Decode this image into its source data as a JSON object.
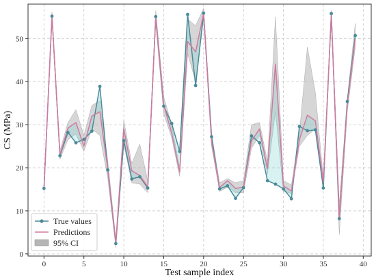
{
  "chart_data": {
    "type": "line",
    "xlabel": "Test sample index",
    "ylabel": "CS (MPa)",
    "xlim": [
      -2,
      41
    ],
    "ylim": [
      -0.5,
      58
    ],
    "xticks": [
      0,
      5,
      10,
      15,
      20,
      25,
      30,
      35,
      40
    ],
    "yticks": [
      0,
      10,
      20,
      30,
      40,
      50
    ],
    "grid": true,
    "legend_position": "bottom-left",
    "x": [
      0,
      1,
      2,
      3,
      4,
      5,
      6,
      7,
      8,
      9,
      10,
      11,
      12,
      13,
      14,
      15,
      16,
      17,
      18,
      19,
      20,
      21,
      22,
      23,
      24,
      25,
      26,
      27,
      28,
      29,
      30,
      31,
      32,
      33,
      34,
      35,
      36,
      37,
      38,
      39
    ],
    "series": [
      {
        "name": "True values",
        "color": "#4a8a9a",
        "values": [
          15.2,
          55.2,
          22.8,
          28.2,
          25.8,
          26.6,
          28.5,
          38.9,
          19.5,
          2.4,
          26.3,
          17.4,
          17.9,
          15.3,
          55.1,
          34.3,
          30.3,
          23.8,
          55.6,
          39.1,
          55.9,
          27.2,
          15.1,
          15.8,
          12.9,
          15.4,
          27.4,
          25.8,
          17.0,
          16.2,
          15.1,
          12.8,
          29.6,
          28.6,
          28.8,
          15.3,
          55.8,
          8.2,
          35.4,
          50.7
        ]
      },
      {
        "name": "Predictions",
        "color": "#d07aa0",
        "values": [
          15.2,
          55.3,
          23.0,
          29.2,
          30.5,
          25.0,
          32.0,
          33.0,
          19.6,
          2.6,
          29.0,
          19.3,
          18.2,
          15.6,
          55.0,
          34.6,
          28.0,
          19.0,
          49.3,
          46.9,
          55.8,
          26.0,
          15.4,
          17.0,
          15.2,
          15.5,
          26.2,
          29.0,
          19.8,
          44.1,
          15.8,
          14.6,
          26.5,
          32.2,
          30.9,
          16.6,
          55.5,
          8.6,
          34.6,
          49.9
        ]
      },
      {
        "name": "95% CI",
        "color": "#b5b5b5",
        "lower": [
          14.6,
          54.2,
          22.0,
          26.5,
          27.8,
          23.8,
          29.0,
          27.5,
          17.5,
          1.5,
          25.5,
          16.5,
          16.2,
          14.2,
          53.5,
          32.5,
          27.0,
          18.0,
          46.5,
          40.0,
          54.5,
          25.0,
          14.5,
          15.5,
          14.2,
          14.2,
          24.5,
          27.5,
          18.5,
          33.0,
          14.5,
          14.0,
          25.0,
          27.5,
          29.0,
          15.5,
          54.5,
          4.5,
          33.0,
          48.0
        ],
        "upper": [
          15.8,
          56.2,
          24.0,
          30.5,
          33.5,
          27.5,
          34.5,
          35.5,
          21.5,
          3.5,
          31.0,
          21.0,
          25.5,
          17.0,
          56.5,
          36.5,
          30.0,
          20.0,
          54.5,
          53.0,
          57.0,
          28.0,
          16.5,
          17.5,
          16.5,
          17.0,
          30.0,
          30.5,
          21.5,
          55.0,
          17.0,
          16.0,
          28.0,
          48.0,
          37.5,
          17.5,
          56.5,
          11.5,
          36.0,
          53.5
        ]
      }
    ]
  }
}
